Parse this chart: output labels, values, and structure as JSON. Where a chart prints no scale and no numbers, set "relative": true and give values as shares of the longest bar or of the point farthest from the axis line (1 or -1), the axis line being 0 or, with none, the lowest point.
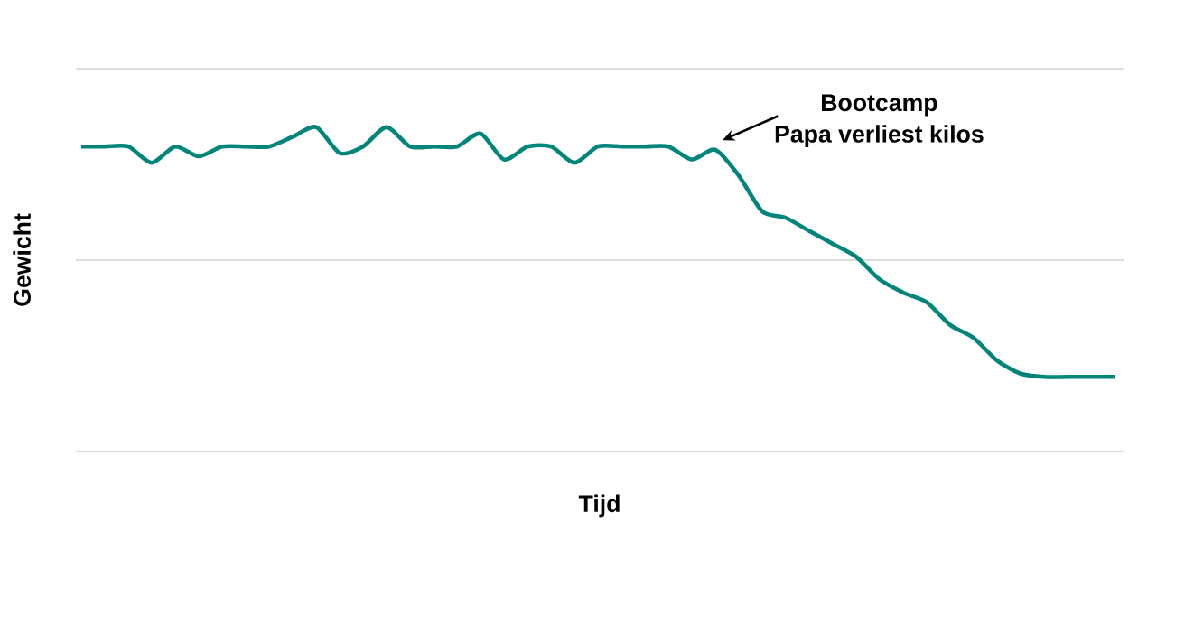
{
  "chart_data": {
    "type": "line",
    "relative": true,
    "xlabel": "Tijd",
    "ylabel": "Gewicht",
    "annotations": [
      "Bootcamp",
      "Papa verliest kilos"
    ],
    "categories": [
      null,
      null,
      null,
      null,
      null,
      null,
      null,
      null,
      null,
      null,
      null,
      null,
      null,
      null,
      null,
      null,
      null,
      null,
      null,
      null,
      null,
      null,
      null,
      null,
      null,
      null,
      null,
      null,
      null,
      null,
      null,
      null,
      null,
      null,
      null,
      null,
      null,
      null,
      null,
      null,
      null,
      null,
      null,
      null,
      null
    ],
    "values": [
      0.94,
      0.94,
      0.94,
      0.89,
      0.94,
      0.91,
      0.94,
      0.94,
      0.94,
      0.97,
      1.0,
      0.92,
      0.94,
      1.0,
      0.94,
      0.94,
      0.94,
      0.98,
      0.9,
      0.94,
      0.94,
      0.89,
      0.94,
      0.94,
      0.94,
      0.94,
      0.9,
      0.93,
      0.85,
      0.74,
      0.72,
      0.68,
      0.64,
      0.6,
      0.53,
      0.49,
      0.46,
      0.39,
      0.35,
      0.28,
      0.24,
      0.23,
      0.23,
      0.23,
      0.23
    ],
    "ref_lines": [
      {
        "axis": "y",
        "value": 0.59,
        "color": "#d1d1d1"
      },
      {
        "axis": "y",
        "value": 1.18,
        "color": "#d1d1d1"
      }
    ],
    "color": "#00857a",
    "marker": "none"
  }
}
